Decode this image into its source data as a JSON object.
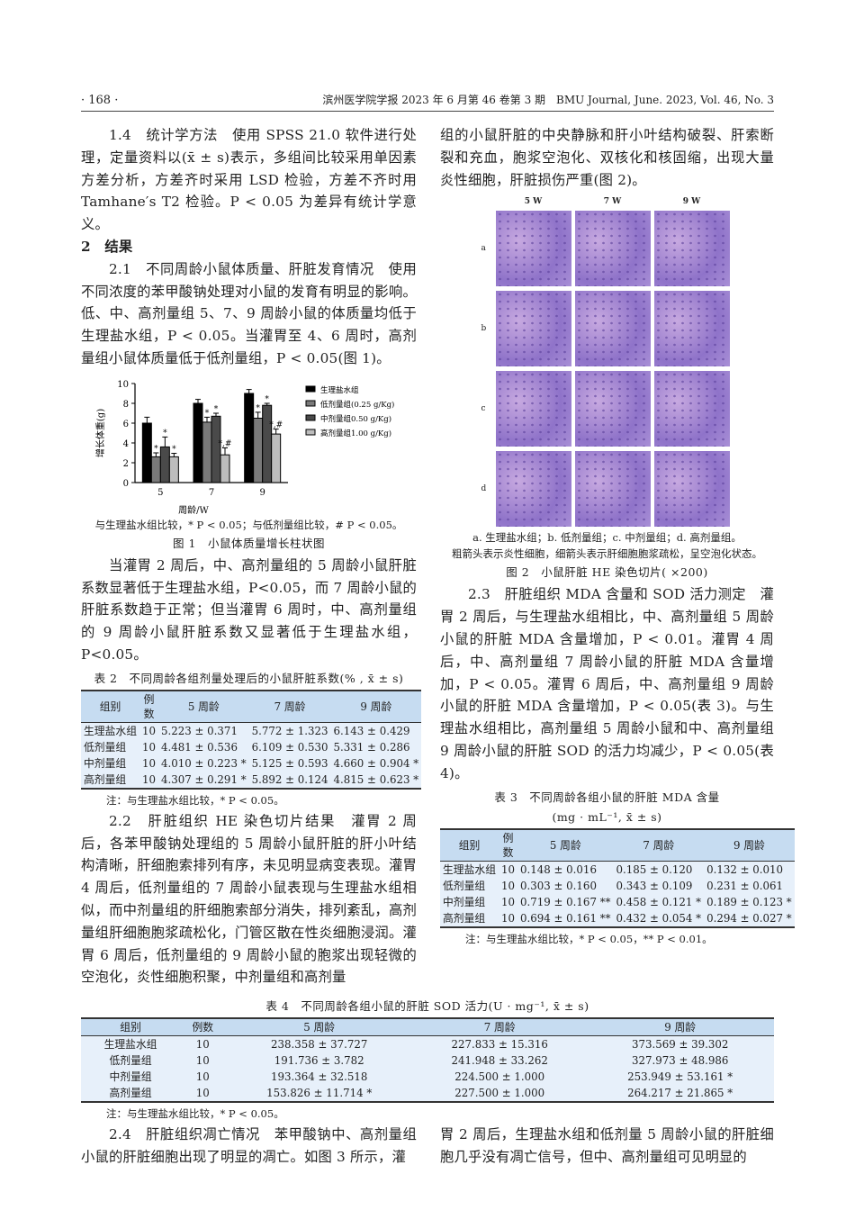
{
  "header": {
    "page": "· 168 ·",
    "journal": "滨州医学院学报 2023 年 6 月第 46 卷第 3 期　BMU Journal, June. 2023, Vol. 46, No. 3"
  },
  "left": {
    "p1": "1.4　统计学方法　使用 SPSS 21.0 软件进行处理，定量资料以(x̄ ± s)表示，多组间比较采用单因素方差分析，方差齐时采用 LSD 检验，方差不齐时用 Tamhane′s T2 检验。P < 0.05 为差异有统计学意义。",
    "h2": "2　结果",
    "p2": "2.1　不同周龄小鼠体质量、肝脏发育情况　使用不同浓度的苯甲酸钠处理对小鼠的发育有明显的影响。低、中、高剂量组 5、7、9 周龄小鼠的体质量均低于生理盐水组，P < 0.05。当灌胃至 4、6 周时，高剂量组小鼠体质量低于低剂量组，P < 0.05(图 1)。",
    "p3": "当灌胃 2 周后，中、高剂量组的 5 周龄小鼠肝脏系数显著低于生理盐水组，P<0.05，而 7 周龄小鼠的肝脏系数趋于正常；但当灌胃 6 周时，中、高剂量组的 9 周龄小鼠肝脏系数又显著低于生理盐水组，P<0.05。",
    "p4": "2.2　肝脏组织 HE 染色切片结果　灌胃 2 周后，各苯甲酸钠处理组的 5 周龄小鼠肝脏的肝小叶结构清晰，肝细胞索排列有序，未见明显病变表现。灌胃 4 周后，低剂量组的 7 周龄小鼠表现与生理盐水组相似，而中剂量组的肝细胞索部分消失，排列紊乱，高剂量组肝细胞胞浆疏松化，门管区散在性炎细胞浸润。灌胃 6 周后，低剂量组的 9 周龄小鼠的胞浆出现轻微的空泡化，炎性细胞积聚，中剂量组和高剂量"
  },
  "right": {
    "p1": "组的小鼠肝脏的中央静脉和肝小叶结构破裂、肝索断裂和充血，胞浆空泡化、双核化和核固缩，出现大量炎性细胞，肝脏损伤严重(图 2)。",
    "p2": "2.3　肝脏组织 MDA 含量和 SOD 活力测定　灌胃 2 周后，与生理盐水组相比，中、高剂量组 5 周龄小鼠的肝脏 MDA 含量增加，P < 0.01。灌胃 4 周后，中、高剂量组 7 周龄小鼠的肝脏 MDA 含量增加，P < 0.05。灌胃 6 周后，中、高剂量组 9 周龄小鼠的肝脏 MDA 含量增加，P < 0.05(表 3)。与生理盐水组相比，高剂量组 5 周龄小鼠和中、高剂量组 9 周龄小鼠的肝脏 SOD 的活力均减少，P < 0.05(表 4)。"
  },
  "bottom": {
    "left": "2.4　肝脏组织凋亡情况　苯甲酸钠中、高剂量组小鼠的肝脏细胞出现了明显的凋亡。如图 3 所示，灌",
    "right": "胃 2 周后，生理盐水组和低剂量 5 周龄小鼠的肝脏细胞几乎没有凋亡信号，但中、高剂量组可见明显的"
  },
  "figure1": {
    "note": "与生理盐水组比较，* P < 0.05；与低剂量组比较，# P < 0.05。",
    "caption": "图 1　小鼠体质量增长柱状图"
  },
  "chart_data": {
    "type": "bar",
    "title": "",
    "xlabel": "周龄/W",
    "ylabel": "增长体重(g)",
    "ylim": [
      0,
      10
    ],
    "yticks": [
      "0",
      "2",
      "4",
      "6",
      "8",
      "10"
    ],
    "categories": [
      "5",
      "7",
      "9"
    ],
    "legend_position": "right",
    "series": [
      {
        "name": "生理盐水组",
        "color": "#000000",
        "values": [
          6.0,
          8.0,
          9.0
        ],
        "errors": [
          0.6,
          0.4,
          0.4
        ],
        "marks": [
          "",
          "",
          ""
        ]
      },
      {
        "name": "低剂量组(0.25 g/Kg)",
        "color": "#7a7a7a",
        "values": [
          2.6,
          6.1,
          6.5
        ],
        "errors": [
          0.4,
          0.5,
          0.6
        ],
        "marks": [
          "*",
          "*",
          "*"
        ]
      },
      {
        "name": "中剂量组0.50 g/Kg)",
        "color": "#4a4a4a",
        "values": [
          3.6,
          6.7,
          7.8
        ],
        "errors": [
          1.0,
          0.3,
          0.2
        ],
        "marks": [
          "*",
          "*",
          "*"
        ]
      },
      {
        "name": "高剂量组1.00 g/Kg)",
        "color": "#bdbdbd",
        "values": [
          2.6,
          2.8,
          4.9
        ],
        "errors": [
          0.35,
          0.7,
          0.5
        ],
        "marks": [
          "*",
          "*,#",
          "*,#"
        ]
      }
    ]
  },
  "figure2": {
    "cols": [
      "5 W",
      "7 W",
      "9 W"
    ],
    "rows": [
      "a",
      "b",
      "c",
      "d"
    ],
    "legend1": "a. 生理盐水组；b. 低剂量组；c. 中剂量组；d. 高剂量组。",
    "legend2": "粗箭头表示炎性细胞，细箭头表示肝细胞胞浆疏松，呈空泡化状态。",
    "caption": "图 2　小鼠肝脏 HE 染色切片( ×200)"
  },
  "table2": {
    "title": "表 2　不同周龄各组剂量处理后的小鼠肝脏系数(% , x̄ ± s)",
    "headers": [
      "组别",
      "例数",
      "5 周龄",
      "7 周龄",
      "9 周龄"
    ],
    "rows": [
      [
        "生理盐水组",
        "10",
        "5.223 ± 0.371",
        "5.772 ± 1.323",
        "6.143 ± 0.429"
      ],
      [
        "低剂量组",
        "10",
        "4.481 ± 0.536",
        "6.109 ± 0.530",
        "5.331 ± 0.286"
      ],
      [
        "中剂量组",
        "10",
        "4.010 ± 0.223 *",
        "5.125 ± 0.593",
        "4.660 ± 0.904 *"
      ],
      [
        "高剂量组",
        "10",
        "4.307 ± 0.291 *",
        "5.892 ± 0.124",
        "4.815 ± 0.623 *"
      ]
    ],
    "note": "注：与生理盐水组比较，* P < 0.05。"
  },
  "table3": {
    "title": "表 3　不同周龄各组小鼠的肝脏 MDA 含量",
    "subtitle": "(mg · mL⁻¹, x̄ ± s)",
    "headers": [
      "组别",
      "例数",
      "5 周龄",
      "7 周龄",
      "9 周龄"
    ],
    "rows": [
      [
        "生理盐水组",
        "10",
        "0.148 ± 0.016",
        "0.185 ± 0.120",
        "0.132 ± 0.010"
      ],
      [
        "低剂量组",
        "10",
        "0.303 ± 0.160",
        "0.343 ± 0.109",
        "0.231 ± 0.061"
      ],
      [
        "中剂量组",
        "10",
        "0.719 ± 0.167 **",
        "0.458 ± 0.121 *",
        "0.189 ± 0.123 *"
      ],
      [
        "高剂量组",
        "10",
        "0.694 ± 0.161 **",
        "0.432 ± 0.054 *",
        "0.294 ± 0.027 *"
      ]
    ],
    "note": "注：与生理盐水组比较，* P < 0.05，** P < 0.01。"
  },
  "table4": {
    "title": "表 4　不同周龄各组小鼠的肝脏 SOD 活力(U · mg⁻¹, x̄ ± s)",
    "headers": [
      "组别",
      "例数",
      "5 周龄",
      "7 周龄",
      "9 周龄"
    ],
    "rows": [
      [
        "生理盐水组",
        "10",
        "238.358 ± 37.727",
        "227.833 ± 15.316",
        "373.569 ± 39.302"
      ],
      [
        "低剂量组",
        "10",
        "191.736 ± 3.782",
        "241.948 ± 33.262",
        "327.973 ± 48.986"
      ],
      [
        "中剂量组",
        "10",
        "193.364 ± 32.518",
        "224.500 ± 1.000",
        "253.949 ± 53.161 *"
      ],
      [
        "高剂量组",
        "10",
        "153.826 ± 11.714 *",
        "227.500 ± 1.000",
        "264.217 ± 21.865 *"
      ]
    ],
    "note": "注：与生理盐水组比较，* P < 0.05。"
  }
}
